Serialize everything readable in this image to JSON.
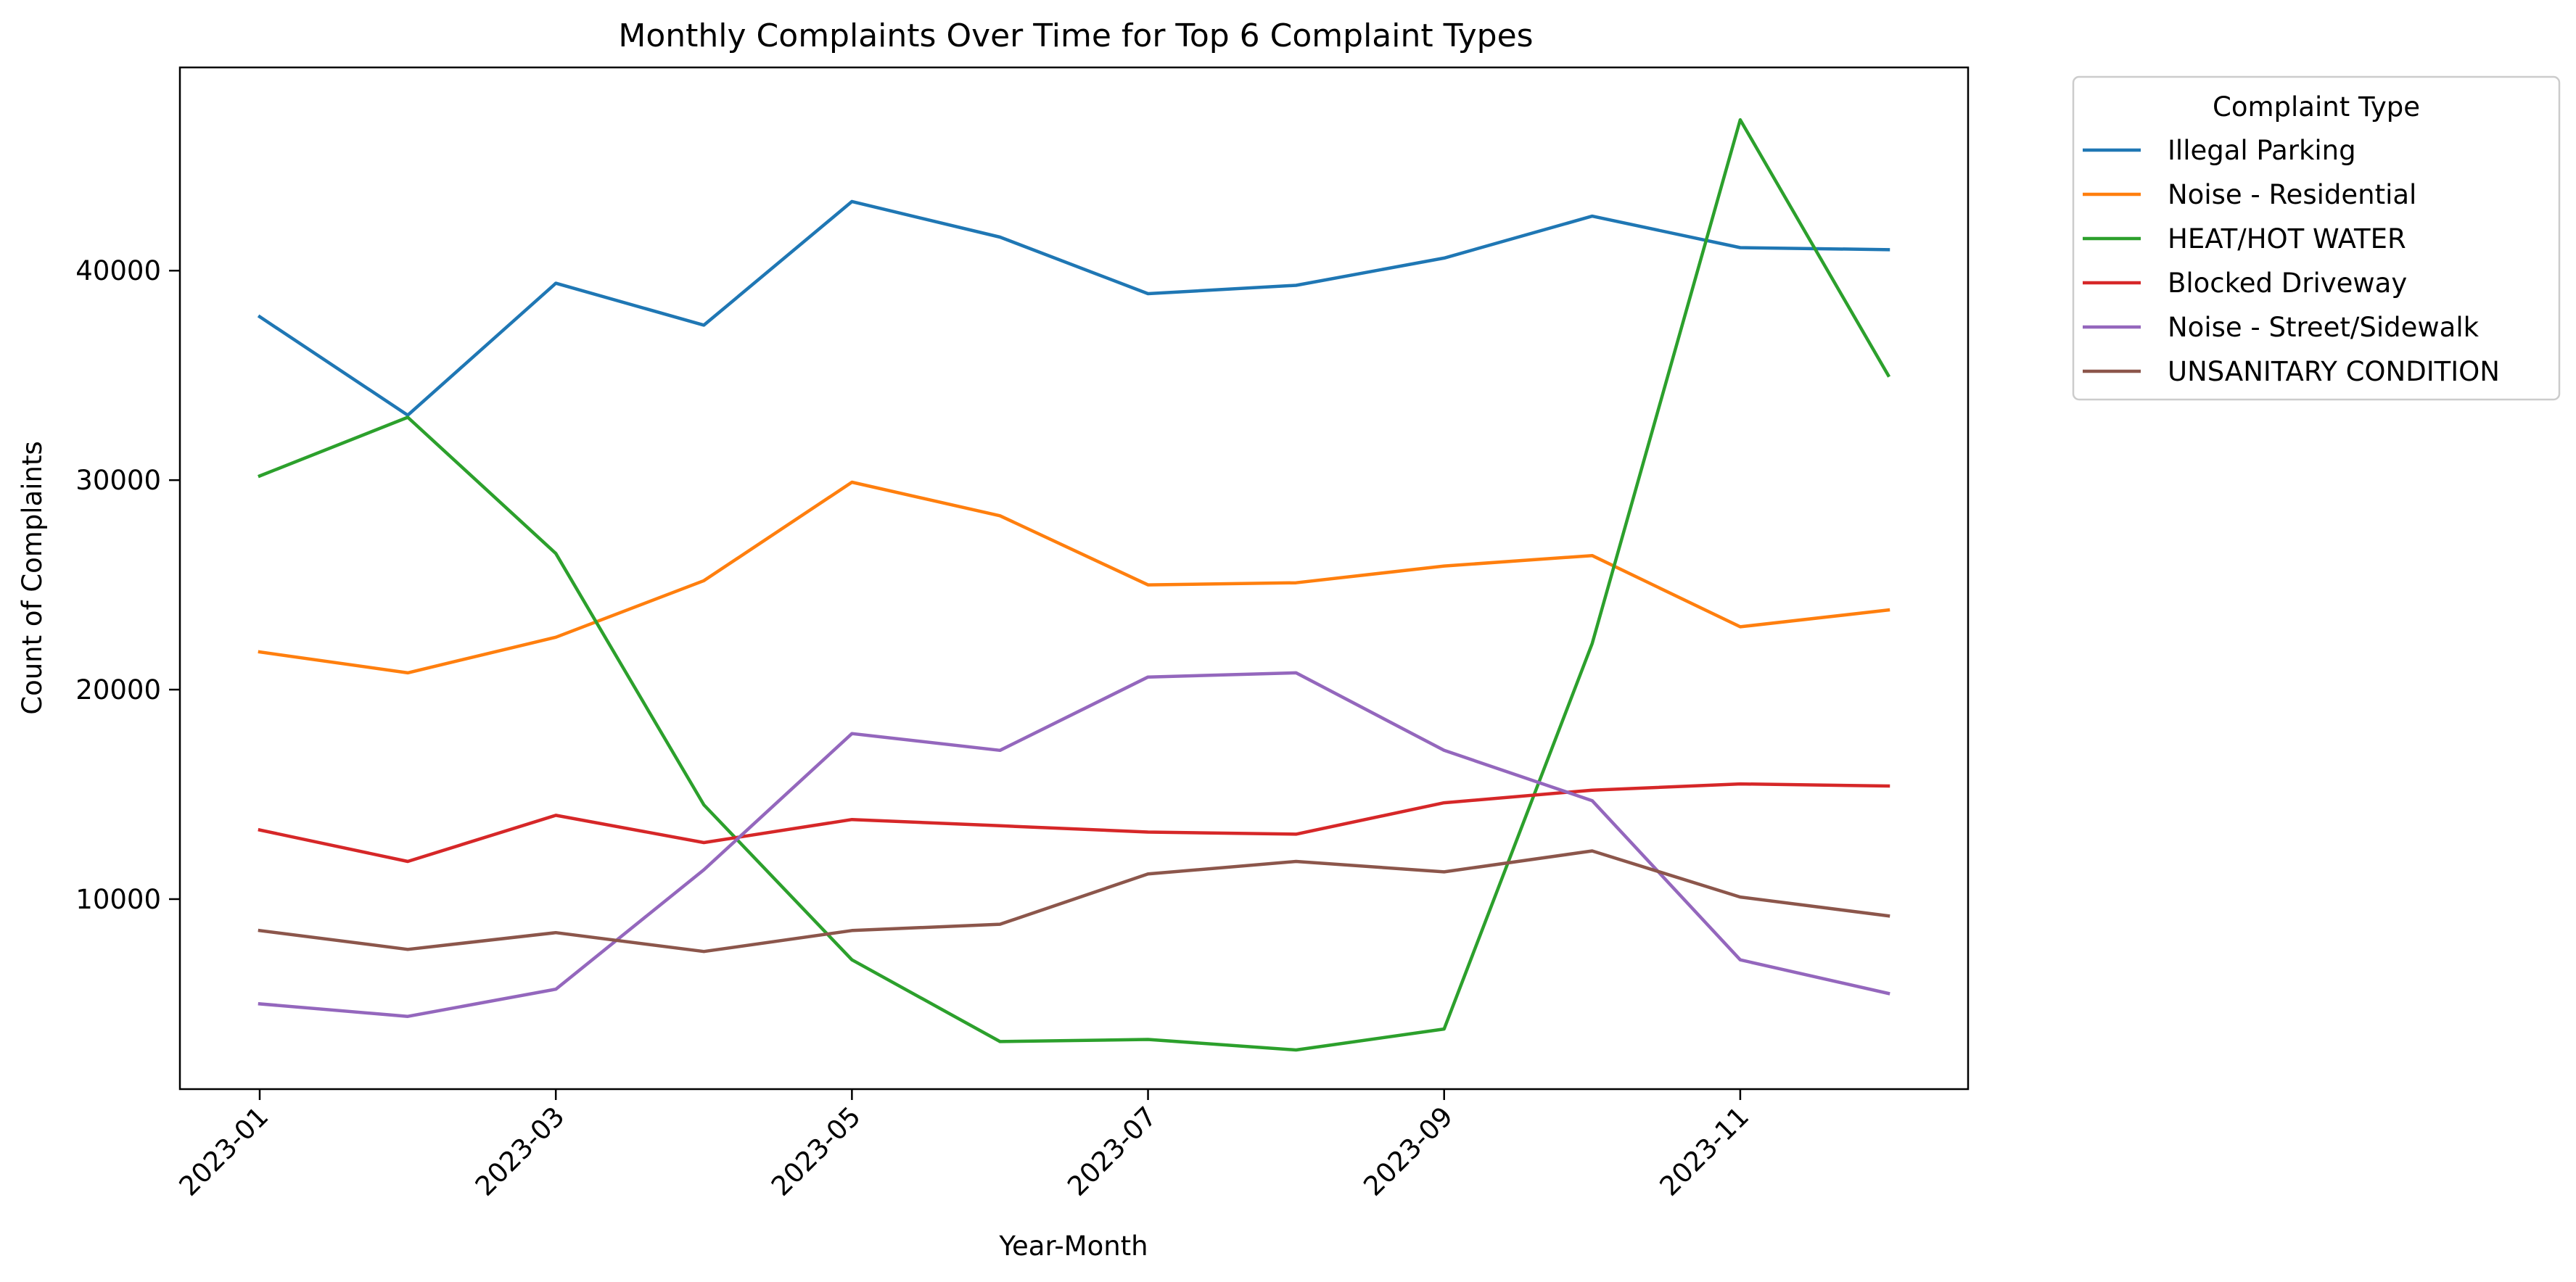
{
  "chart_data": {
    "type": "line",
    "title": "Monthly Complaints Over Time for Top 6 Complaint Types",
    "xlabel": "Year-Month",
    "ylabel": "Count of Complaints",
    "x": [
      "2023-01",
      "2023-02",
      "2023-03",
      "2023-04",
      "2023-05",
      "2023-06",
      "2023-07",
      "2023-08",
      "2023-09",
      "2023-10",
      "2023-11",
      "2023-12"
    ],
    "x_tick_labels": [
      "2023-01",
      "2023-03",
      "2023-05",
      "2023-07",
      "2023-09",
      "2023-11"
    ],
    "y_ticks": [
      10000,
      20000,
      30000,
      40000
    ],
    "y_tick_labels": [
      "10000",
      "20000",
      "30000",
      "40000"
    ],
    "ylim": [
      930,
      49700
    ],
    "grid": false,
    "legend": {
      "title": "Complaint Type",
      "placement": "outside-upper-right"
    },
    "series": [
      {
        "name": "Illegal Parking",
        "color": "#1f77b4",
        "values": [
          37800,
          33100,
          39400,
          37400,
          43300,
          41600,
          38900,
          39300,
          40600,
          42600,
          41100,
          41000
        ]
      },
      {
        "name": "Noise - Residential",
        "color": "#ff7f0e",
        "values": [
          21800,
          20800,
          22500,
          25200,
          29900,
          28300,
          25000,
          25100,
          25900,
          26400,
          23000,
          23800
        ]
      },
      {
        "name": "HEAT/HOT WATER",
        "color": "#2ca02c",
        "values": [
          30200,
          33000,
          26500,
          14500,
          7100,
          3200,
          3300,
          2800,
          3800,
          22200,
          47200,
          35000
        ]
      },
      {
        "name": "Blocked Driveway",
        "color": "#d62728",
        "values": [
          13300,
          11800,
          14000,
          12700,
          13800,
          13500,
          13200,
          13100,
          14600,
          15200,
          15500,
          15400
        ]
      },
      {
        "name": "Noise - Street/Sidewalk",
        "color": "#9467bd",
        "values": [
          5000,
          4400,
          5700,
          11400,
          17900,
          17100,
          20600,
          20800,
          17100,
          14700,
          7100,
          5500
        ]
      },
      {
        "name": "UNSANITARY CONDITION",
        "color": "#8c564b",
        "values": [
          8500,
          7600,
          8400,
          7500,
          8500,
          8800,
          11200,
          11800,
          11300,
          12300,
          10100,
          9200
        ]
      }
    ]
  }
}
